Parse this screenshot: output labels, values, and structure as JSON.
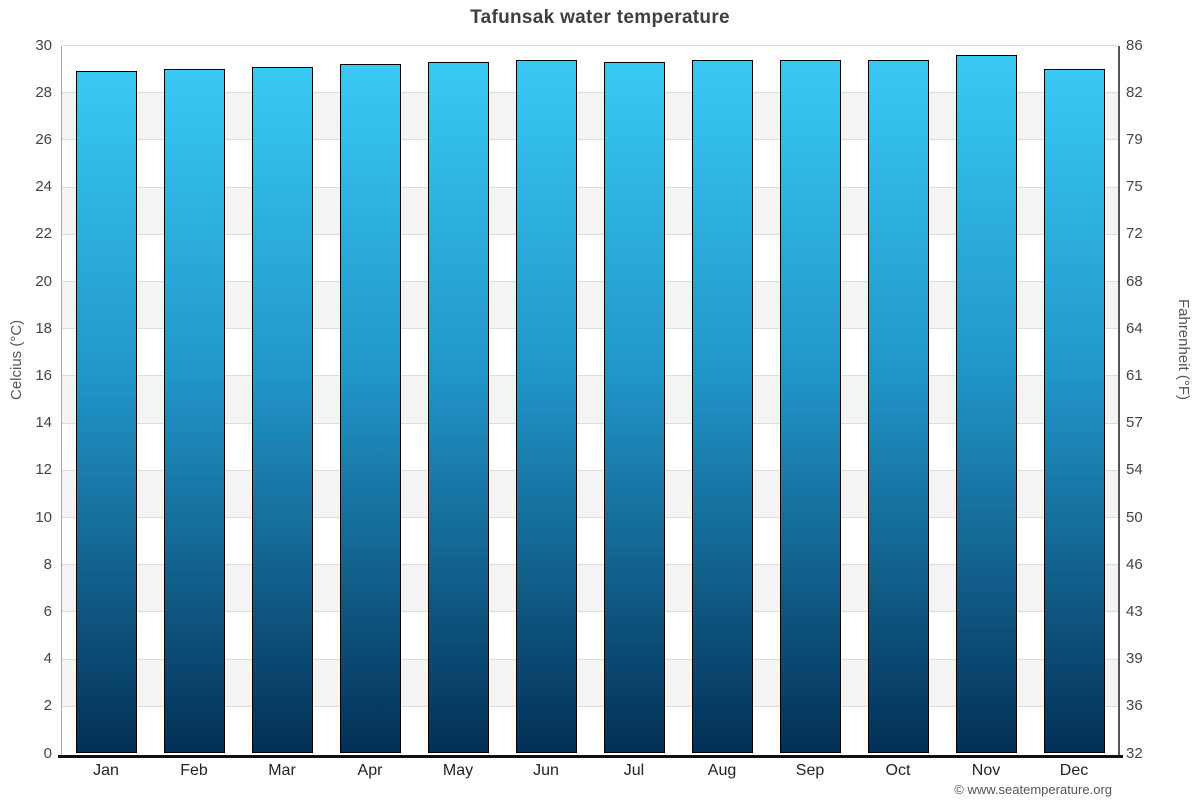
{
  "title": "Tafunsak water temperature",
  "footer": "© www.seatemperature.org",
  "chart_data": {
    "type": "bar",
    "title": "Tafunsak water temperature",
    "categories": [
      "Jan",
      "Feb",
      "Mar",
      "Apr",
      "May",
      "Jun",
      "Jul",
      "Aug",
      "Sep",
      "Oct",
      "Nov",
      "Dec"
    ],
    "series": [
      {
        "name": "Water temperature (°C)",
        "values": [
          28.9,
          29.0,
          29.1,
          29.2,
          29.3,
          29.4,
          29.3,
          29.4,
          29.4,
          29.4,
          29.6,
          29.0
        ]
      }
    ],
    "ylabel_left": "Celcius (°C)",
    "ylabel_right": "Fahrenheit (°F)",
    "ylim_celsius": [
      0,
      30
    ],
    "yticks_celsius": [
      30,
      28,
      26,
      24,
      22,
      20,
      18,
      16,
      14,
      12,
      10,
      8,
      6,
      4,
      2,
      0
    ],
    "yticks_fahrenheit": [
      86,
      82,
      79,
      75,
      72,
      68,
      64,
      61,
      57,
      54,
      50,
      46,
      43,
      39,
      36,
      32
    ],
    "grid": "alternating-bands",
    "legend": "none"
  },
  "colors": {
    "bar_gradient_top": "#38c9f4",
    "bar_gradient_mid": "#2196c9",
    "bar_gradient_bottom": "#033055",
    "bar_border": "#000000",
    "band_gray": "#f4f4f4",
    "band_white": "#ffffff",
    "gridline": "#dcdcdc",
    "axis_left_line": "#a8a8a8",
    "axis_right_line": "#555555",
    "axis_bottom_line": "#111111",
    "title_color": "#3f3f3f"
  }
}
